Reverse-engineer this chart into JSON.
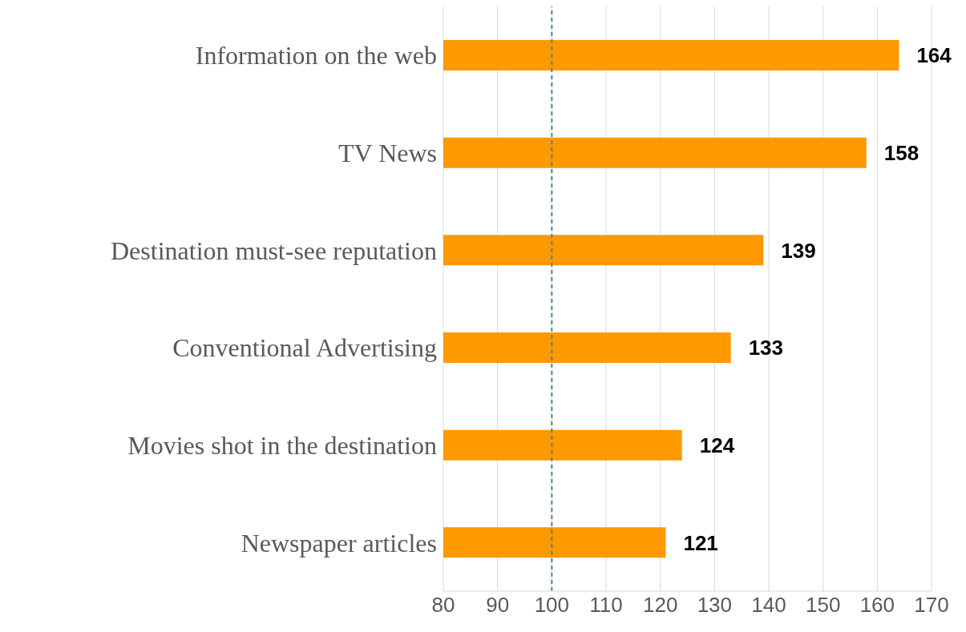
{
  "chart_data": {
    "type": "bar",
    "orientation": "horizontal",
    "categories": [
      "Information on the web",
      "TV News",
      "Destination must-see reputation",
      "Conventional Advertising",
      "Movies shot in the destination",
      "Newspaper articles"
    ],
    "values": [
      164,
      158,
      139,
      133,
      124,
      121
    ],
    "color": "#ff9900",
    "xlim": [
      80,
      170
    ],
    "xticks": [
      80,
      90,
      100,
      110,
      120,
      130,
      140,
      150,
      160,
      170
    ],
    "grid": "x",
    "data_labels": true,
    "ref_lines": [
      {
        "axis": "x",
        "value": 100,
        "color": "#4a8a8a",
        "line_style": "dashed"
      }
    ]
  }
}
